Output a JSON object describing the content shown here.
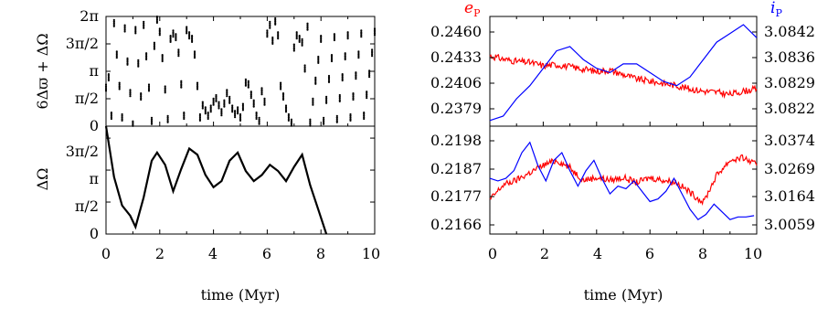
{
  "figure": {
    "left": {
      "xlabel": "time (Myr)",
      "x_ticks": [
        "0",
        "2",
        "4",
        "6",
        "8",
        "10"
      ],
      "top": {
        "ylabel": "6Δϖ + ΔΩ",
        "y_ticks": [
          "0",
          "π/2",
          "π",
          "3π/2",
          "2π"
        ]
      },
      "bottom": {
        "ylabel": "ΔΩ",
        "y_ticks": [
          "0",
          "π/2",
          "π",
          "3π/2"
        ]
      }
    },
    "right": {
      "xlabel": "time (Myr)",
      "x_ticks": [
        "0",
        "2",
        "4",
        "6",
        "8",
        "10"
      ],
      "label_e": "e",
      "label_e_sub": "P",
      "label_i": "i",
      "label_i_sub": "P",
      "top": {
        "y_left_ticks": [
          "0.2460",
          "0.2433",
          "0.2406",
          "0.2379"
        ],
        "y_right_ticks": [
          "3.0842",
          "3.0836",
          "3.0829",
          "3.0822"
        ]
      },
      "bottom": {
        "y_left_ticks": [
          "0.2198",
          "0.2187",
          "0.2177",
          "0.2166"
        ],
        "y_right_ticks": [
          "3.0374",
          "3.0269",
          "3.0164",
          "3.0059"
        ]
      }
    }
  },
  "chart_data": [
    {
      "type": "scatter",
      "panel": "left-top",
      "xlim": [
        0,
        10
      ],
      "ylim": [
        0,
        6.2832
      ],
      "series": [
        {
          "color": "#000000",
          "x": [
            0.0,
            0.1,
            0.2,
            0.3,
            0.4,
            0.5,
            0.6,
            0.7,
            0.8,
            0.9,
            1.0,
            1.1,
            1.2,
            1.3,
            1.4,
            1.5,
            1.6,
            1.7,
            1.8,
            1.9,
            2.0,
            2.1,
            2.2,
            2.3,
            2.4,
            2.5,
            2.6,
            2.7,
            2.8,
            2.9,
            3.0,
            3.1,
            3.2,
            3.3,
            3.4,
            3.5,
            3.6,
            3.7,
            3.8,
            3.9,
            4.0,
            4.1,
            4.2,
            4.3,
            4.4,
            4.5,
            4.6,
            4.7,
            4.8,
            4.9,
            5.0,
            5.1,
            5.2,
            5.3,
            5.4,
            5.5,
            5.6,
            5.7,
            5.8,
            5.9,
            6.0,
            6.1,
            6.2,
            6.3,
            6.4,
            6.5,
            6.6,
            6.7,
            6.8,
            6.9,
            7.0,
            7.1,
            7.2,
            7.3,
            7.4,
            7.5,
            7.6,
            7.7,
            7.8,
            7.9,
            8.0,
            8.1,
            8.2,
            8.3,
            8.4,
            8.5,
            8.6,
            8.7,
            8.8,
            8.9,
            9.0,
            9.1,
            9.2,
            9.3,
            9.4,
            9.5,
            9.6,
            9.7,
            9.8,
            9.9,
            10.0
          ],
          "y": [
            2.2,
            2.8,
            0.6,
            5.9,
            4.1,
            2.3,
            0.5,
            5.6,
            3.7,
            1.9,
            0.1,
            5.5,
            3.6,
            1.7,
            5.8,
            4.0,
            2.2,
            0.3,
            4.6,
            6.1,
            5.4,
            3.9,
            2.1,
            0.4,
            5.0,
            5.3,
            5.1,
            4.2,
            2.4,
            0.6,
            5.5,
            5.2,
            5.0,
            4.1,
            2.3,
            0.5,
            1.2,
            0.9,
            0.6,
            1.0,
            1.4,
            1.6,
            1.2,
            0.8,
            1.3,
            1.9,
            1.5,
            1.0,
            0.7,
            0.9,
            0.5,
            1.1,
            2.5,
            2.4,
            1.8,
            1.3,
            0.6,
            0.3,
            2.0,
            1.4,
            5.3,
            5.8,
            4.9,
            6.0,
            5.2,
            2.3,
            1.7,
            1.0,
            0.5,
            0.2,
            4.5,
            5.2,
            5.0,
            4.8,
            3.3,
            5.7,
            0.2,
            1.4,
            2.6,
            3.8,
            5.0,
            0.3,
            1.5,
            2.7,
            3.9,
            5.1,
            0.4,
            1.6,
            2.8,
            4.0,
            5.2,
            0.5,
            1.7,
            2.9,
            4.1,
            5.3,
            0.6,
            1.8,
            3.0,
            4.2,
            5.4
          ]
        }
      ]
    },
    {
      "type": "line",
      "panel": "left-bottom",
      "xlim": [
        0,
        10
      ],
      "ylim": [
        0,
        5.3
      ],
      "series": [
        {
          "color": "#000000",
          "x": [
            0.0,
            0.3,
            0.6,
            0.9,
            1.1,
            1.4,
            1.7,
            1.9,
            2.2,
            2.5,
            2.8,
            3.1,
            3.4,
            3.7,
            4.0,
            4.3,
            4.6,
            4.9,
            5.2,
            5.5,
            5.8,
            6.1,
            6.4,
            6.7,
            7.0,
            7.3,
            7.6,
            7.9,
            8.2
          ],
          "y": [
            5.3,
            2.8,
            1.4,
            0.9,
            0.35,
            1.8,
            3.6,
            4.0,
            3.4,
            2.1,
            3.2,
            4.2,
            3.9,
            2.9,
            2.3,
            2.6,
            3.6,
            4.0,
            3.1,
            2.6,
            2.9,
            3.4,
            3.1,
            2.6,
            3.3,
            3.9,
            2.4,
            1.2,
            0.0
          ]
        }
      ]
    },
    {
      "type": "line",
      "panel": "right-top",
      "xlim": [
        0,
        10
      ],
      "series": [
        {
          "name": "e",
          "axis": "left",
          "color": "#ff0000",
          "x": [
            0,
            0.5,
            1,
            1.5,
            2,
            2.5,
            3,
            3.5,
            4,
            4.5,
            5,
            5.5,
            6,
            6.5,
            7,
            7.5,
            8,
            8.5,
            9,
            9.5,
            10
          ],
          "y": [
            0.2435,
            0.2432,
            0.243,
            0.2429,
            0.2426,
            0.2427,
            0.2425,
            0.2423,
            0.2421,
            0.2422,
            0.2418,
            0.2414,
            0.2412,
            0.241,
            0.2408,
            0.2405,
            0.2403,
            0.2402,
            0.24,
            0.2403,
            0.2405
          ]
        },
        {
          "name": "i",
          "axis": "right",
          "color": "#0000ff",
          "x": [
            0,
            0.5,
            1,
            1.5,
            2,
            2.5,
            3,
            3.5,
            4,
            4.5,
            5,
            5.5,
            6,
            6.5,
            7,
            7.5,
            8,
            8.5,
            9,
            9.5,
            10
          ],
          "y": [
            3.0821,
            3.0822,
            3.0826,
            3.0829,
            3.0833,
            3.0837,
            3.0838,
            3.0835,
            3.0833,
            3.0832,
            3.0834,
            3.0834,
            3.0832,
            3.083,
            3.0829,
            3.0831,
            3.0835,
            3.0839,
            3.0841,
            3.0843,
            3.084
          ]
        }
      ]
    },
    {
      "type": "line",
      "panel": "right-bottom",
      "xlim": [
        0,
        10
      ],
      "series": [
        {
          "name": "e",
          "axis": "left",
          "color": "#ff0000",
          "x": [
            0,
            0.5,
            1,
            1.5,
            2,
            2.5,
            3,
            3.5,
            4,
            4.5,
            5,
            5.5,
            6,
            6.5,
            7,
            7.5,
            8,
            8.5,
            9,
            9.5,
            10
          ],
          "y": [
            0.2172,
            0.2178,
            0.218,
            0.2183,
            0.2186,
            0.2188,
            0.2185,
            0.218,
            0.2181,
            0.218,
            0.2181,
            0.2179,
            0.2181,
            0.218,
            0.2179,
            0.2175,
            0.2171,
            0.2182,
            0.2188,
            0.2189,
            0.2186
          ]
        },
        {
          "name": "i",
          "axis": "right",
          "color": "#0000ff",
          "x": [
            0,
            0.3,
            0.6,
            0.9,
            1.2,
            1.5,
            1.8,
            2.1,
            2.4,
            2.7,
            3.0,
            3.3,
            3.6,
            3.9,
            4.2,
            4.5,
            4.8,
            5.1,
            5.4,
            5.7,
            6.0,
            6.3,
            6.6,
            6.9,
            7.2,
            7.5,
            7.8,
            8.1,
            8.4,
            8.7,
            9.0,
            9.3,
            9.6,
            9.9
          ],
          "y": [
            3.023,
            3.022,
            3.023,
            3.026,
            3.033,
            3.037,
            3.028,
            3.022,
            3.03,
            3.033,
            3.026,
            3.02,
            3.026,
            3.03,
            3.023,
            3.017,
            3.02,
            3.019,
            3.022,
            3.018,
            3.014,
            3.015,
            3.018,
            3.023,
            3.017,
            3.011,
            3.007,
            3.009,
            3.013,
            3.01,
            3.007,
            3.008,
            3.008,
            3.0085
          ]
        }
      ]
    }
  ]
}
